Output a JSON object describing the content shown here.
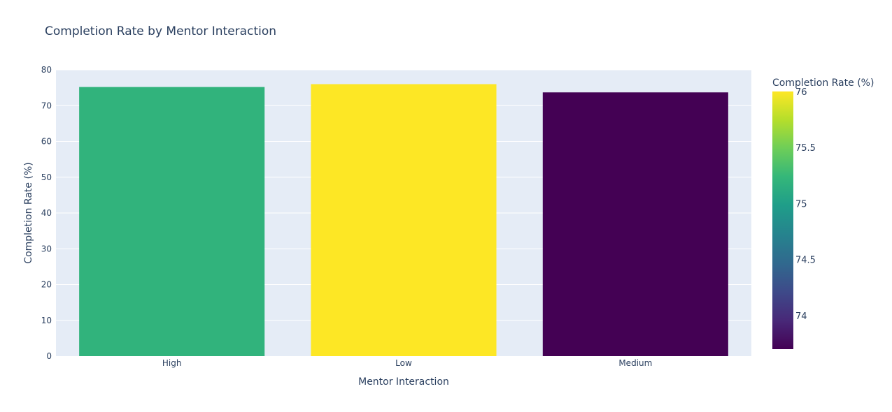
{
  "chart_data": {
    "type": "bar",
    "title": "Completion Rate by Mentor Interaction",
    "xlabel": "Mentor Interaction",
    "ylabel": "Completion Rate (%)",
    "categories": [
      "High",
      "Low",
      "Medium"
    ],
    "values": [
      75.2,
      76.0,
      73.7
    ],
    "ylim": [
      0,
      80
    ],
    "yticks": [
      0,
      10,
      20,
      30,
      40,
      50,
      60,
      70,
      80
    ],
    "grid": true,
    "colorbar": {
      "title": "Completion Rate (%)",
      "colorscale": "Viridis",
      "range": [
        73.7,
        76.0
      ],
      "ticks": [
        74,
        74.5,
        75,
        75.5,
        76
      ]
    },
    "colors": {
      "plot_bg": "#e5ecf6",
      "text": "#2a3f5f",
      "grid": "#ffffff"
    }
  }
}
